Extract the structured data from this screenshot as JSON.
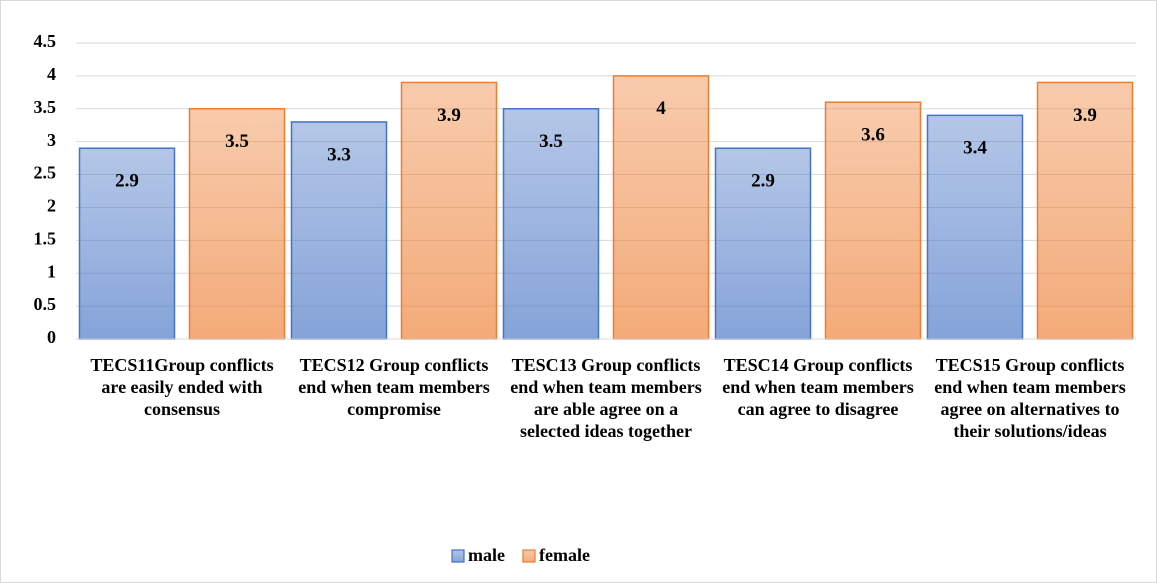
{
  "chart_data": {
    "type": "bar",
    "categories": [
      "TECS11Group conflicts are easily ended with consensus",
      "TECS12 Group conflicts end when team members compromise",
      "TESC13 Group conflicts end when team members are able agree on a selected ideas together",
      "TESC14 Group conflicts end when team members can agree to disagree",
      "TECS15 Group conflicts end when team members agree on alternatives to their solutions/ideas"
    ],
    "series": [
      {
        "name": "male",
        "color": "#4472c4",
        "values": [
          2.9,
          3.3,
          3.5,
          2.9,
          3.4
        ]
      },
      {
        "name": "female",
        "color": "#ed7d31",
        "values": [
          3.5,
          3.9,
          4,
          3.6,
          3.9
        ]
      }
    ],
    "ylim": [
      0,
      4.5
    ],
    "yticks": [
      0,
      0.5,
      1,
      1.5,
      2,
      2.5,
      3,
      3.5,
      4,
      4.5
    ],
    "grid": true,
    "legend": "bottom"
  }
}
